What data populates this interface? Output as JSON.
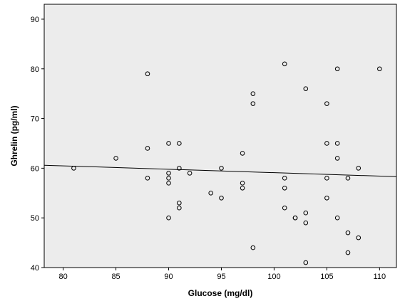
{
  "chart_data": {
    "type": "scatter",
    "title": "",
    "xlabel": "Glucose (mg/dl)",
    "ylabel": "Ghrelin (pg/ml)",
    "xlim": [
      78.2,
      111.6
    ],
    "ylim": [
      40,
      93
    ],
    "xticks": [
      80,
      85,
      90,
      95,
      100,
      105,
      110
    ],
    "yticks": [
      40,
      50,
      60,
      70,
      80,
      90
    ],
    "grid": false,
    "background": "#ececec",
    "marker_color": "#000000",
    "marker": "open-circle",
    "points": [
      {
        "x": 81,
        "y": 60
      },
      {
        "x": 85,
        "y": 62
      },
      {
        "x": 88,
        "y": 79
      },
      {
        "x": 88,
        "y": 64
      },
      {
        "x": 88,
        "y": 58
      },
      {
        "x": 90,
        "y": 65
      },
      {
        "x": 90,
        "y": 59
      },
      {
        "x": 90,
        "y": 58
      },
      {
        "x": 90,
        "y": 57
      },
      {
        "x": 90,
        "y": 50
      },
      {
        "x": 91,
        "y": 65
      },
      {
        "x": 91,
        "y": 60
      },
      {
        "x": 91,
        "y": 53
      },
      {
        "x": 91,
        "y": 52
      },
      {
        "x": 92,
        "y": 59
      },
      {
        "x": 94,
        "y": 55
      },
      {
        "x": 95,
        "y": 60
      },
      {
        "x": 95,
        "y": 54
      },
      {
        "x": 97,
        "y": 63
      },
      {
        "x": 97,
        "y": 57
      },
      {
        "x": 97,
        "y": 56
      },
      {
        "x": 98,
        "y": 75
      },
      {
        "x": 98,
        "y": 73
      },
      {
        "x": 98,
        "y": 44
      },
      {
        "x": 101,
        "y": 81
      },
      {
        "x": 101,
        "y": 58
      },
      {
        "x": 101,
        "y": 56
      },
      {
        "x": 101,
        "y": 52
      },
      {
        "x": 102,
        "y": 50
      },
      {
        "x": 102,
        "y": 50
      },
      {
        "x": 103,
        "y": 76
      },
      {
        "x": 103,
        "y": 51
      },
      {
        "x": 103,
        "y": 49
      },
      {
        "x": 103,
        "y": 41
      },
      {
        "x": 105,
        "y": 73
      },
      {
        "x": 105,
        "y": 65
      },
      {
        "x": 105,
        "y": 58
      },
      {
        "x": 105,
        "y": 54
      },
      {
        "x": 106,
        "y": 80
      },
      {
        "x": 106,
        "y": 65
      },
      {
        "x": 106,
        "y": 62
      },
      {
        "x": 106,
        "y": 50
      },
      {
        "x": 107,
        "y": 58
      },
      {
        "x": 107,
        "y": 47
      },
      {
        "x": 107,
        "y": 43
      },
      {
        "x": 108,
        "y": 60
      },
      {
        "x": 108,
        "y": 46
      },
      {
        "x": 110,
        "y": 80
      }
    ],
    "fit_line": {
      "x": [
        78.2,
        111.6
      ],
      "y": [
        60.6,
        58.3
      ]
    }
  }
}
